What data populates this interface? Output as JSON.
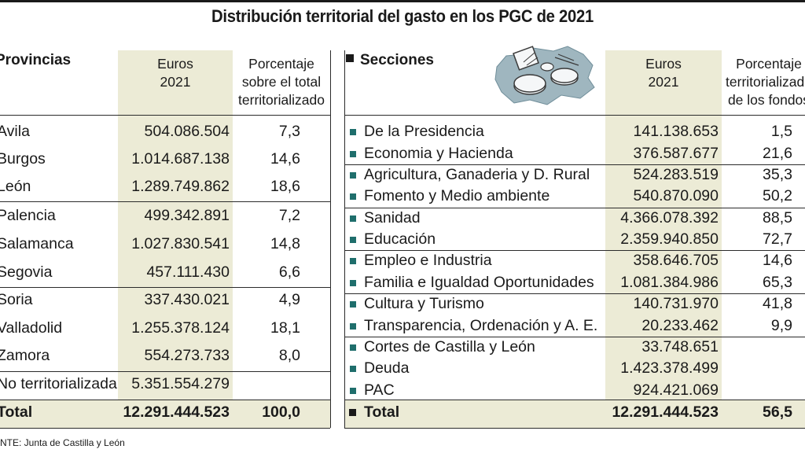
{
  "title": "Distribución territorial del gasto en los PGC de 2021",
  "left": {
    "heading": "Provincias",
    "col_euros": [
      "Euros",
      "2021"
    ],
    "col_pct": [
      "Porcentaje",
      "sobre el total",
      "territorializado"
    ],
    "rows": [
      {
        "name": "Avila",
        "euros": "504.086.504",
        "pct": "7,3"
      },
      {
        "name": "Burgos",
        "euros": "1.014.687.138",
        "pct": "14,6"
      },
      {
        "name": "León",
        "euros": "1.289.749.862",
        "pct": "18,6"
      },
      {
        "name": "Palencia",
        "euros": "499.342.891",
        "pct": "7,2"
      },
      {
        "name": "Salamanca",
        "euros": "1.027.830.541",
        "pct": "14,8"
      },
      {
        "name": "Segovia",
        "euros": "457.111.430",
        "pct": "6,6"
      },
      {
        "name": "Soria",
        "euros": "337.430.021",
        "pct": "4,9"
      },
      {
        "name": "Valladolid",
        "euros": "1.255.378.124",
        "pct": "18,1"
      },
      {
        "name": "Zamora",
        "euros": "554.273.733",
        "pct": "8,0"
      },
      {
        "name": "No territorializada",
        "euros": "5.351.554.279",
        "pct": ""
      }
    ],
    "total": {
      "name": "Total",
      "euros": "12.291.444.523",
      "pct": "100,0"
    }
  },
  "right": {
    "heading": "Secciones",
    "col_euros": [
      "Euros",
      "2021"
    ],
    "col_pct": [
      "Porcentaje",
      "territorializado",
      "de los fondos"
    ],
    "rows": [
      {
        "name": "De la Presidencia",
        "euros": "141.138.653",
        "pct": "1,5"
      },
      {
        "name": "Economia y Hacienda",
        "euros": "376.587.677",
        "pct": "21,6"
      },
      {
        "name": "Agricultura, Ganaderia y D. Rural",
        "euros": "524.283.519",
        "pct": "35,3"
      },
      {
        "name": "Fomento y Medio ambiente",
        "euros": "540.870.090",
        "pct": "50,2"
      },
      {
        "name": "Sanidad",
        "euros": "4.366.078.392",
        "pct": "88,5"
      },
      {
        "name": "Educación",
        "euros": "2.359.940.850",
        "pct": "72,7"
      },
      {
        "name": "Empleo e Industria",
        "euros": "358.646.705",
        "pct": "14,6"
      },
      {
        "name": "Familia e Igualdad Oportunidades",
        "euros": "1.081.384.986",
        "pct": "65,3"
      },
      {
        "name": "Cultura y Turismo",
        "euros": "140.731.970",
        "pct": "41,8"
      },
      {
        "name": "Transparencia, Ordenación y A. E.",
        "euros": "20.233.462",
        "pct": "9,9"
      },
      {
        "name": "Cortes de Castilla y León",
        "euros": "33.748.651",
        "pct": ""
      },
      {
        "name": "Deuda",
        "euros": "1.423.378.499",
        "pct": ""
      },
      {
        "name": "PAC",
        "euros": "924.421.069",
        "pct": ""
      }
    ],
    "total": {
      "name": "Total",
      "euros": "12.291.444.523",
      "pct": "56,5"
    }
  },
  "source": "NTE: Junta de Castilla y León",
  "colors": {
    "column_shade": "#ecebd6",
    "bullet": "#1f6e6c",
    "map": "#9fb6bf"
  },
  "icons": {
    "map": "castilla-leon-map-coins-icon"
  }
}
